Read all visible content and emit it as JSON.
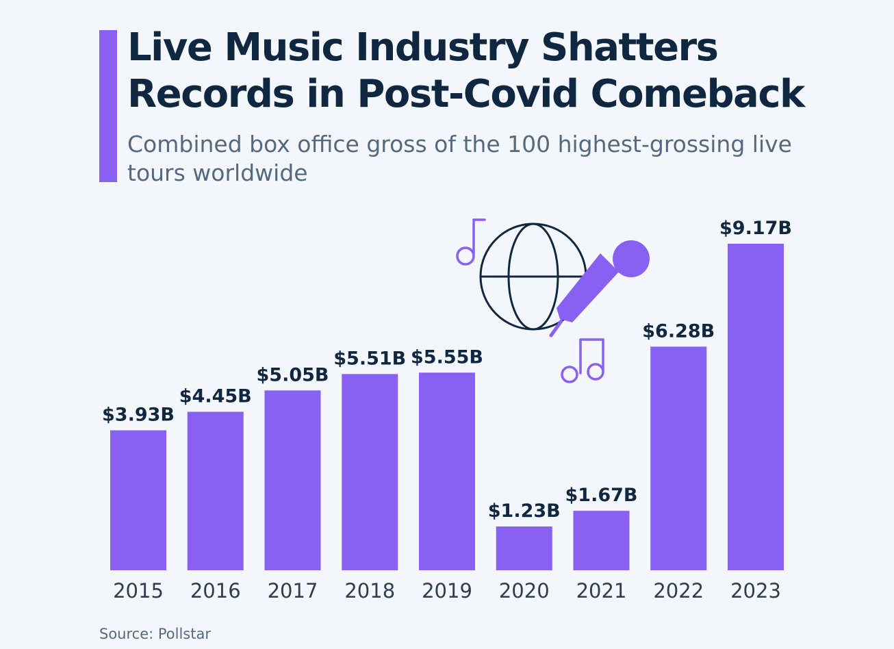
{
  "title": "Live Music Industry Shatters Records in Post-Covid Comeback",
  "subtitle": "Combined box office gross of the 100 highest-grossing live tours worldwide",
  "source": "Source: Pollstar",
  "colors": {
    "accent": "#8860f2",
    "bar": "#8860f2",
    "title": "#0f2741",
    "subtitle": "#54697f",
    "background": "#f3f6fa",
    "icon_line": "#0f2741"
  },
  "icons": [
    "music-note-icon",
    "globe-icon",
    "microphone-icon",
    "double-music-note-icon"
  ],
  "chart_data": {
    "type": "bar",
    "categories": [
      "2015",
      "2016",
      "2017",
      "2018",
      "2019",
      "2020",
      "2021",
      "2022",
      "2023"
    ],
    "values": [
      3.93,
      4.45,
      5.05,
      5.51,
      5.55,
      1.23,
      1.67,
      6.28,
      9.17
    ],
    "value_labels": [
      "$3.93B",
      "$4.45B",
      "$5.05B",
      "$5.51B",
      "$5.55B",
      "$1.23B",
      "$1.67B",
      "$6.28B",
      "$9.17B"
    ],
    "unit": "USD billions",
    "xlabel": "",
    "ylabel": "",
    "ylim": [
      0,
      9.17
    ],
    "grid": false,
    "legend": "none"
  }
}
